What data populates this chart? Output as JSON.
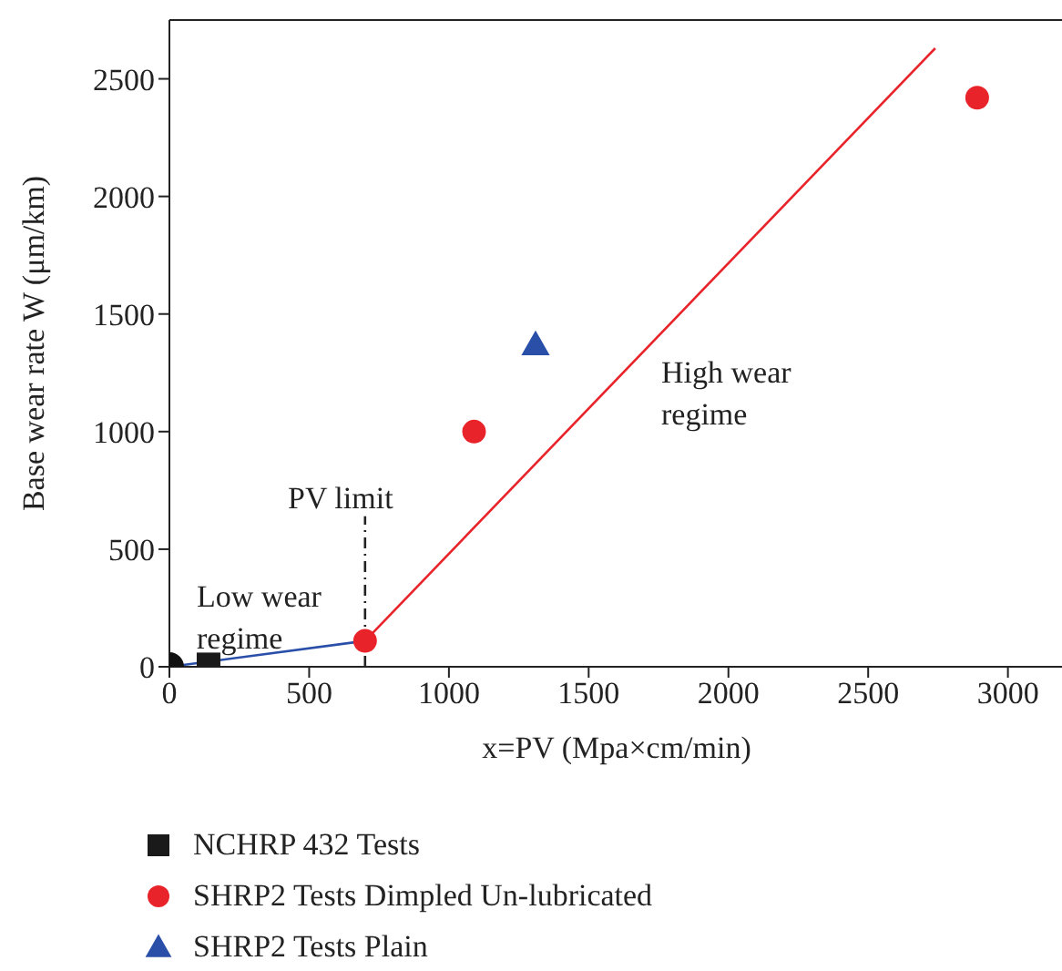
{
  "chart_data": {
    "type": "scatter",
    "xlabel": "x=PV (Mpa×cm/min)",
    "ylabel": "Base wear rate W (μm/km)",
    "xlim": [
      0,
      3200
    ],
    "ylim": [
      0,
      2750
    ],
    "xticks": [
      0,
      500,
      1000,
      1500,
      2000,
      2500,
      3000
    ],
    "yticks": [
      0,
      500,
      1000,
      1500,
      2000,
      2500
    ],
    "grid": false,
    "legend": "bottom",
    "series": [
      {
        "type": "line",
        "color": "#2a4fa8",
        "x": [
          0,
          700
        ],
        "values": [
          0,
          110
        ],
        "marker": "none",
        "line_style": "solid"
      },
      {
        "type": "line",
        "color": "#e8232a",
        "x": [
          700,
          2740
        ],
        "values": [
          110,
          2630
        ],
        "marker": "none",
        "line_style": "solid"
      },
      {
        "type": "line",
        "color": "#222222",
        "x": [
          700,
          700
        ],
        "values": [
          0,
          640
        ],
        "marker": "none",
        "line_style": "dashed"
      },
      {
        "color": "#111111",
        "x": [
          0
        ],
        "values": [
          0
        ],
        "marker": "circle"
      },
      {
        "name": "NCHRP 432 Tests",
        "color": "#1a1a1a",
        "x": [
          140
        ],
        "values": [
          10
        ],
        "marker": "square"
      },
      {
        "name": "SHRP2 Tests Dimpled Un-lubricated",
        "color": "#e8232a",
        "x": [
          700,
          1090,
          2890
        ],
        "values": [
          110,
          1000,
          2420
        ],
        "marker": "circle"
      },
      {
        "name": "SHRP2 Tests Plain",
        "color": "#2a4fa8",
        "x": [
          1310
        ],
        "values": [
          1370
        ],
        "marker": "triangle"
      }
    ],
    "annotations": [
      "PV limit",
      "Low wear regime",
      "High wear regime"
    ]
  }
}
